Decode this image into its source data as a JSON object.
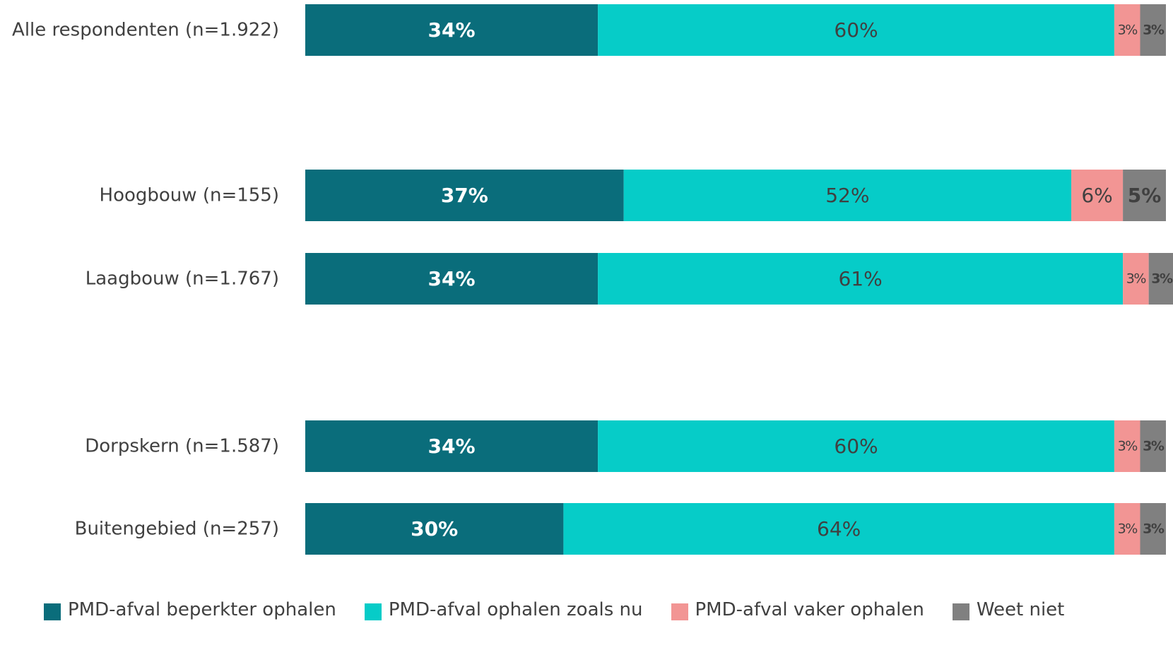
{
  "chart_data": {
    "type": "bar",
    "orientation": "horizontal",
    "stacked": true,
    "percent_stacked": true,
    "categories": [
      "Alle respondenten (n=1.922)",
      "Hoogbouw (n=155)",
      "Laagbouw (n=1.767)",
      "Dorpskern (n=1.587)",
      "Buitengebied (n=257)"
    ],
    "series": [
      {
        "name": "PMD-afval beperkter ophalen",
        "color": "#0a6d7b",
        "values": [
          34,
          37,
          34,
          34,
          30
        ],
        "labels": [
          "34%",
          "37%",
          "34%",
          "34%",
          "30%"
        ]
      },
      {
        "name": "PMD-afval ophalen zoals nu",
        "color": "#06ccc8",
        "values": [
          60,
          52,
          61,
          60,
          64
        ],
        "labels": [
          "60%",
          "52%",
          "61%",
          "60%",
          "64%"
        ]
      },
      {
        "name": "PMD-afval vaker ophalen",
        "color": "#f29594",
        "values": [
          3,
          6,
          3,
          3,
          3
        ],
        "labels": [
          "3%",
          "6%",
          "3%",
          "3%",
          "3%"
        ]
      },
      {
        "name": "Weet niet",
        "color": "#808080",
        "values": [
          3,
          5,
          3,
          3,
          3
        ],
        "labels": [
          "3%",
          "5%",
          "3%",
          "3%",
          "3%"
        ]
      }
    ],
    "xlim": [
      0,
      100
    ],
    "grid": false,
    "legend_position": "bottom"
  }
}
